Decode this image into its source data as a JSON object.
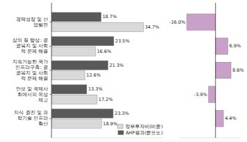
{
  "chart_data": [
    {
      "type": "bar",
      "orientation": "horizontal",
      "categories": [
        "경제성장 및 산\n업발전",
        "삶의 질 향상: 공\n공복지 및 사회\n적 문제 해결",
        "지속가능한 국가\n인프라구축: 공\n공복지 및 사회\n적 문제 해결",
        "안보 및 국제사\n회에서의 위상\n제고",
        "지식 증진 및 과\n학기술 인프라\n확산"
      ],
      "series": [
        {
          "name": "정부투자비(비중)",
          "color": "#d9d9d9",
          "values": [
            34.7,
            16.6,
            12.6,
            17.2,
            18.9
          ],
          "value_labels": [
            "34.7%",
            "16.6%",
            "12.6%",
            "17.2%",
            "18.9%"
          ]
        },
        {
          "name": "AHP결과(중요도)",
          "color": "#595959",
          "values": [
            18.7,
            23.5,
            21.3,
            13.3,
            23.3
          ],
          "value_labels": [
            "18.7%",
            "23.5%",
            "21.3%",
            "13.3%",
            "23.3%"
          ]
        }
      ],
      "xlim": [
        0,
        42
      ],
      "data_labels": true,
      "tick_labels": "y",
      "legend": "lower right"
    },
    {
      "type": "bar",
      "orientation": "horizontal",
      "categories": [
        null,
        null,
        null,
        null,
        null
      ],
      "values": [
        -16.0,
        6.9,
        8.6,
        -3.9,
        4.4
      ],
      "value_labels": [
        "-16.0%",
        "6.9%",
        "8.6%",
        "-3.9%",
        "4.4%"
      ],
      "color": "#c9a0c9",
      "xlim": [
        -20,
        14
      ],
      "data_labels": true,
      "tick_labels": false
    }
  ]
}
